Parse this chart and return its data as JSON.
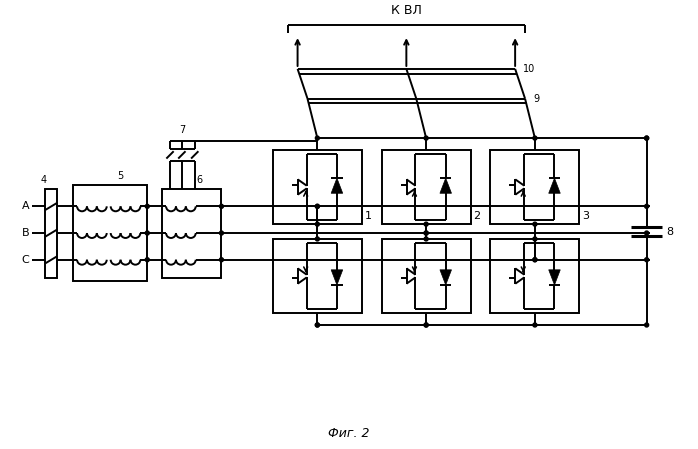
{
  "title": "Фиг. 2",
  "top_label": "К ВЛ",
  "label_10": "10",
  "label_9": "9",
  "label_7": "7",
  "label_6": "6",
  "label_5": "5",
  "label_4": "4",
  "label_8": "8",
  "label_1": "1",
  "label_2": "2",
  "label_3": "3",
  "label_A": "A",
  "label_B": "B",
  "label_C": "C",
  "bg_color": "#ffffff",
  "line_color": "#000000",
  "lw": 1.4,
  "figsize": [
    6.98,
    4.49
  ],
  "dpi": 100
}
